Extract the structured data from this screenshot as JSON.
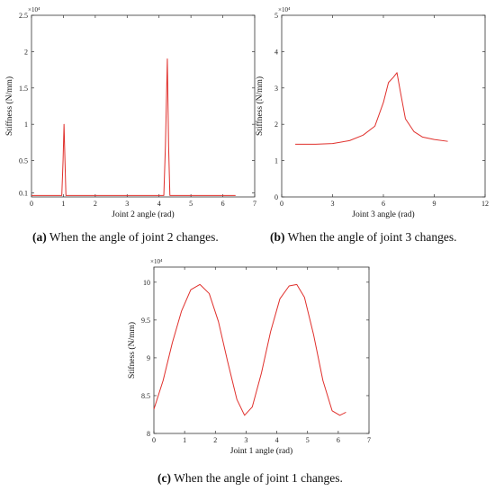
{
  "chart_data": [
    {
      "type": "line",
      "panel": "a",
      "caption_tag": "(a)",
      "caption_text": " When the angle of joint 2 changes.",
      "xlabel": "Joint 2 angle (rad)",
      "ylabel": "Stiffness (N/mm)",
      "multiplier": "×10⁴",
      "xlim": [
        0,
        7
      ],
      "ylim": [
        0,
        2.5
      ],
      "xticks": [
        0,
        1,
        2,
        3,
        4,
        5,
        6,
        7
      ],
      "yticks": [
        0.1,
        0.5,
        1,
        1.5,
        2,
        2.5
      ],
      "color": "#e0302c",
      "series": [
        {
          "x": [
            0,
            0.95,
            0.99,
            1.02,
            1.05,
            1.08,
            1.14,
            1.2,
            4.15,
            4.2,
            4.26,
            4.3,
            4.34,
            6.4
          ],
          "y": [
            0.02,
            0.02,
            0.5,
            1.0,
            0.5,
            0.02,
            0.02,
            0.02,
            0.02,
            0.7,
            1.9,
            0.7,
            0.02,
            0.02
          ]
        }
      ]
    },
    {
      "type": "line",
      "panel": "b",
      "caption_tag": "(b)",
      "caption_text": " When the angle of joint 3 changes.",
      "xlabel": "Joint 3 angle (rad)",
      "ylabel": "Stiffness (N/mm)",
      "multiplier": "×10⁴",
      "xlim": [
        0,
        12
      ],
      "ylim": [
        0,
        5
      ],
      "xticks": [
        0,
        3,
        6,
        9,
        12
      ],
      "yticks": [
        0,
        1,
        2,
        3,
        4,
        5
      ],
      "color": "#e0302c",
      "series": [
        {
          "x": [
            0.8,
            2.0,
            3.0,
            4.0,
            4.8,
            5.5,
            6.0,
            6.3,
            6.6,
            6.8,
            7.0,
            7.3,
            7.8,
            8.3,
            9.0,
            9.8
          ],
          "y": [
            1.45,
            1.45,
            1.47,
            1.55,
            1.7,
            1.95,
            2.6,
            3.15,
            3.3,
            3.42,
            2.9,
            2.15,
            1.8,
            1.65,
            1.58,
            1.53
          ]
        }
      ]
    },
    {
      "type": "line",
      "panel": "c",
      "caption_tag": "(c)",
      "caption_text": " When the angle of joint 1 changes.",
      "xlabel": "Joint 1 angle (rad)",
      "ylabel": "Stifness (N/mm)",
      "multiplier": "×10⁴",
      "xlim": [
        0,
        7
      ],
      "ylim": [
        8,
        10.2
      ],
      "xticks": [
        0,
        1,
        2,
        3,
        4,
        5,
        6,
        7
      ],
      "yticks": [
        8,
        8.5,
        9,
        9.5,
        10
      ],
      "color": "#e0302c",
      "series": [
        {
          "x": [
            0,
            0.3,
            0.6,
            0.9,
            1.2,
            1.5,
            1.8,
            2.1,
            2.4,
            2.7,
            2.95,
            3.2,
            3.5,
            3.8,
            4.1,
            4.4,
            4.65,
            4.9,
            5.2,
            5.5,
            5.8,
            6.05,
            6.25
          ],
          "y": [
            8.32,
            8.7,
            9.2,
            9.62,
            9.9,
            9.97,
            9.85,
            9.48,
            8.95,
            8.45,
            8.24,
            8.35,
            8.8,
            9.35,
            9.78,
            9.95,
            9.97,
            9.8,
            9.3,
            8.7,
            8.3,
            8.24,
            8.28
          ]
        }
      ]
    }
  ]
}
